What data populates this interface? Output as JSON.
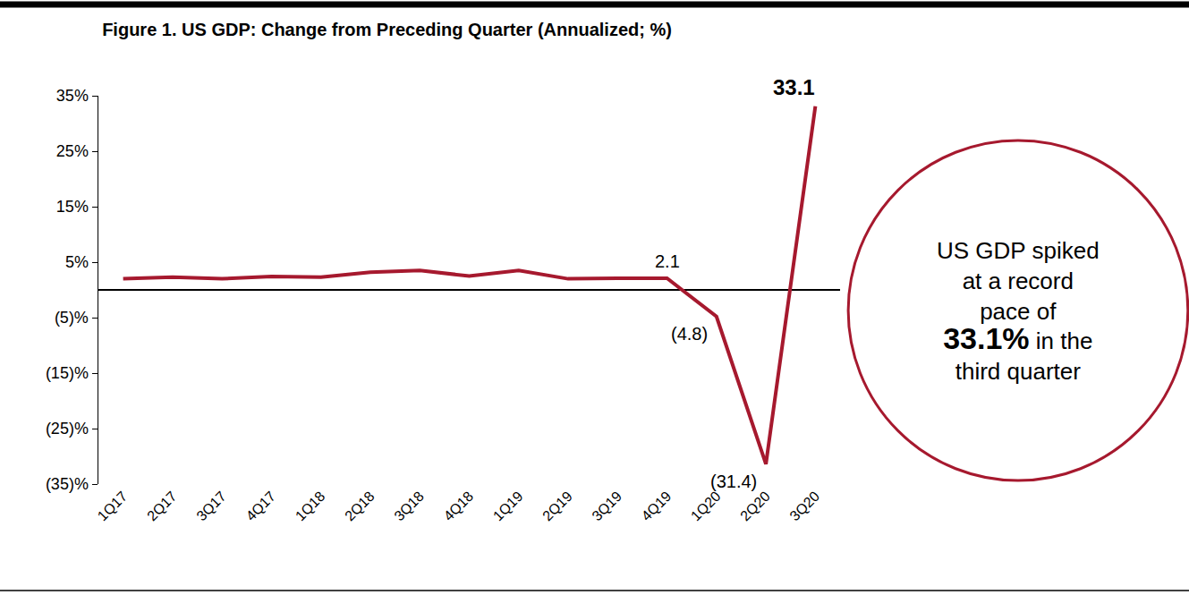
{
  "chart_data": {
    "type": "line",
    "title": "Figure 1. US GDP: Change from Preceding Quarter (Annualized; %)",
    "categories": [
      "1Q17",
      "2Q17",
      "3Q17",
      "4Q17",
      "1Q18",
      "2Q18",
      "3Q18",
      "4Q18",
      "1Q19",
      "2Q19",
      "3Q19",
      "4Q19",
      "1Q20",
      "2Q20",
      "3Q20"
    ],
    "values": [
      2.0,
      2.3,
      2.0,
      2.4,
      2.3,
      3.2,
      3.5,
      2.5,
      3.5,
      2.0,
      2.1,
      2.1,
      -4.8,
      -31.4,
      33.1
    ],
    "value_labels": [
      null,
      null,
      null,
      null,
      null,
      null,
      null,
      null,
      null,
      null,
      null,
      "2.1",
      "(4.8)",
      "(31.4)",
      "33.1"
    ],
    "data_labels": true,
    "color": "#a6192e",
    "ylim": [
      -35,
      35
    ],
    "yticks": [
      {
        "value": 35,
        "label": "35%"
      },
      {
        "value": 25,
        "label": "25%"
      },
      {
        "value": 15,
        "label": "15%"
      },
      {
        "value": 5,
        "label": "5%"
      },
      {
        "value": -5,
        "label": "(5)%"
      },
      {
        "value": -15,
        "label": "(15)%"
      },
      {
        "value": -25,
        "label": "(25)%"
      },
      {
        "value": -35,
        "label": "(35)%"
      }
    ],
    "grid": false,
    "annotation": {
      "before": [
        "US GDP spiked",
        "at a record",
        "pace of"
      ],
      "highlight": "33.1%",
      "after": [
        "in the",
        "third quarter"
      ]
    }
  }
}
